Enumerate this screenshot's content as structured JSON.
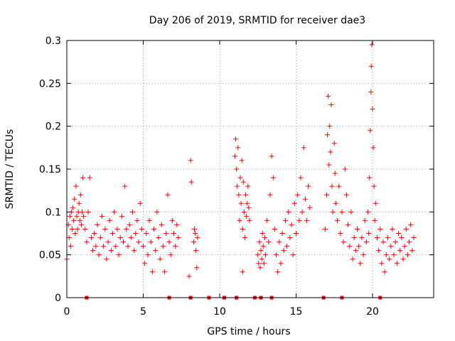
{
  "chart_data": {
    "type": "scatter",
    "title": "Day 206 of 2019, SRMTID for receiver dae3",
    "xlabel": "GPS time / hours",
    "ylabel": "SRMTID / TECUs",
    "xlim": [
      0,
      24
    ],
    "ylim": [
      0,
      0.3
    ],
    "xticks": [
      0,
      5,
      10,
      15,
      20
    ],
    "yticks": [
      0,
      0.05,
      0.1,
      0.15,
      0.2,
      0.25,
      0.3
    ],
    "grid": true,
    "marker": "+",
    "color": "#ff0000",
    "series": [
      {
        "name": "SRMTID",
        "points": [
          [
            0.0,
            0.045
          ],
          [
            0.1,
            0.085
          ],
          [
            0.15,
            0.07
          ],
          [
            0.2,
            0.095
          ],
          [
            0.25,
            0.06
          ],
          [
            0.3,
            0.1
          ],
          [
            0.35,
            0.08
          ],
          [
            0.4,
            0.105
          ],
          [
            0.45,
            0.09
          ],
          [
            0.5,
            0.115
          ],
          [
            0.55,
            0.075
          ],
          [
            0.6,
            0.13
          ],
          [
            0.65,
            0.095
          ],
          [
            0.7,
            0.08
          ],
          [
            0.75,
            0.1
          ],
          [
            0.8,
            0.11
          ],
          [
            0.85,
            0.09
          ],
          [
            0.9,
            0.12
          ],
          [
            0.95,
            0.085
          ],
          [
            1.0,
            0.1
          ],
          [
            1.05,
            0.14
          ],
          [
            1.1,
            0.095
          ],
          [
            1.2,
            0.08
          ],
          [
            1.3,
            0.065
          ],
          [
            1.4,
            0.1
          ],
          [
            1.5,
            0.14
          ],
          [
            1.6,
            0.07
          ],
          [
            1.7,
            0.055
          ],
          [
            1.8,
            0.075
          ],
          [
            1.9,
            0.06
          ],
          [
            2.0,
            0.085
          ],
          [
            2.1,
            0.05
          ],
          [
            2.2,
            0.07
          ],
          [
            2.3,
            0.095
          ],
          [
            2.4,
            0.06
          ],
          [
            2.5,
            0.08
          ],
          [
            2.6,
            0.045
          ],
          [
            2.7,
            0.065
          ],
          [
            2.8,
            0.09
          ],
          [
            2.9,
            0.055
          ],
          [
            3.0,
            0.075
          ],
          [
            3.1,
            0.1
          ],
          [
            3.2,
            0.06
          ],
          [
            3.3,
            0.08
          ],
          [
            3.4,
            0.05
          ],
          [
            3.5,
            0.07
          ],
          [
            3.6,
            0.095
          ],
          [
            3.7,
            0.065
          ],
          [
            3.8,
            0.13
          ],
          [
            3.9,
            0.08
          ],
          [
            4.0,
            0.06
          ],
          [
            4.1,
            0.085
          ],
          [
            4.2,
            0.07
          ],
          [
            4.3,
            0.1
          ],
          [
            4.4,
            0.055
          ],
          [
            4.5,
            0.075
          ],
          [
            4.6,
            0.09
          ],
          [
            4.7,
            0.065
          ],
          [
            4.8,
            0.11
          ],
          [
            4.9,
            0.08
          ],
          [
            5.0,
            0.06
          ],
          [
            5.1,
            0.04
          ],
          [
            5.2,
            0.075
          ],
          [
            5.3,
            0.05
          ],
          [
            5.4,
            0.09
          ],
          [
            5.5,
            0.065
          ],
          [
            5.6,
            0.03
          ],
          [
            5.7,
            0.08
          ],
          [
            5.8,
            0.055
          ],
          [
            5.9,
            0.1
          ],
          [
            6.0,
            0.07
          ],
          [
            6.1,
            0.045
          ],
          [
            6.2,
            0.085
          ],
          [
            6.3,
            0.06
          ],
          [
            6.4,
            0.03
          ],
          [
            6.5,
            0.075
          ],
          [
            6.6,
            0.12
          ],
          [
            6.7,
            0.065
          ],
          [
            6.8,
            0.05
          ],
          [
            6.9,
            0.09
          ],
          [
            7.0,
            0.075
          ],
          [
            7.1,
            0.06
          ],
          [
            7.2,
            0.085
          ],
          [
            7.3,
            0.07
          ],
          [
            8.0,
            0.025
          ],
          [
            8.1,
            0.16
          ],
          [
            8.15,
            0.135
          ],
          [
            8.3,
            0.065
          ],
          [
            8.35,
            0.08
          ],
          [
            8.4,
            0.075
          ],
          [
            8.45,
            0.055
          ],
          [
            8.5,
            0.035
          ],
          [
            8.55,
            0.07
          ],
          [
            11.0,
            0.165
          ],
          [
            11.05,
            0.185
          ],
          [
            11.1,
            0.15
          ],
          [
            11.15,
            0.13
          ],
          [
            11.2,
            0.175
          ],
          [
            11.25,
            0.12
          ],
          [
            11.3,
            0.09
          ],
          [
            11.35,
            0.14
          ],
          [
            11.4,
            0.11
          ],
          [
            11.45,
            0.16
          ],
          [
            11.5,
            0.08
          ],
          [
            11.55,
            0.135
          ],
          [
            11.6,
            0.1
          ],
          [
            11.65,
            0.07
          ],
          [
            11.7,
            0.12
          ],
          [
            11.75,
            0.095
          ],
          [
            11.8,
            0.11
          ],
          [
            11.85,
            0.13
          ],
          [
            11.9,
            0.105
          ],
          [
            11.95,
            0.09
          ],
          [
            11.5,
            0.03
          ],
          [
            12.5,
            0.05
          ],
          [
            12.55,
            0.04
          ],
          [
            12.6,
            0.065
          ],
          [
            12.65,
            0.035
          ],
          [
            12.7,
            0.055
          ],
          [
            12.75,
            0.045
          ],
          [
            12.8,
            0.075
          ],
          [
            12.85,
            0.06
          ],
          [
            12.9,
            0.04
          ],
          [
            12.95,
            0.07
          ],
          [
            13.0,
            0.05
          ],
          [
            13.1,
            0.09
          ],
          [
            13.2,
            0.065
          ],
          [
            13.3,
            0.12
          ],
          [
            13.4,
            0.165
          ],
          [
            13.5,
            0.14
          ],
          [
            13.6,
            0.08
          ],
          [
            13.7,
            0.05
          ],
          [
            13.8,
            0.03
          ],
          [
            13.9,
            0.065
          ],
          [
            14.0,
            0.04
          ],
          [
            14.1,
            0.075
          ],
          [
            14.2,
            0.055
          ],
          [
            14.3,
            0.09
          ],
          [
            14.4,
            0.06
          ],
          [
            14.5,
            0.1
          ],
          [
            14.6,
            0.07
          ],
          [
            14.7,
            0.085
          ],
          [
            14.8,
            0.05
          ],
          [
            14.9,
            0.11
          ],
          [
            15.0,
            0.075
          ],
          [
            15.1,
            0.12
          ],
          [
            15.2,
            0.09
          ],
          [
            15.3,
            0.14
          ],
          [
            15.4,
            0.1
          ],
          [
            15.5,
            0.175
          ],
          [
            15.6,
            0.115
          ],
          [
            15.7,
            0.09
          ],
          [
            15.8,
            0.13
          ],
          [
            15.9,
            0.105
          ],
          [
            16.9,
            0.08
          ],
          [
            17.0,
            0.12
          ],
          [
            17.05,
            0.19
          ],
          [
            17.1,
            0.235
          ],
          [
            17.15,
            0.155
          ],
          [
            17.2,
            0.2
          ],
          [
            17.25,
            0.17
          ],
          [
            17.3,
            0.225
          ],
          [
            17.35,
            0.13
          ],
          [
            17.4,
            0.1
          ],
          [
            17.5,
            0.18
          ],
          [
            17.55,
            0.145
          ],
          [
            17.6,
            0.11
          ],
          [
            17.7,
            0.09
          ],
          [
            17.8,
            0.13
          ],
          [
            17.9,
            0.075
          ],
          [
            18.0,
            0.1
          ],
          [
            18.1,
            0.065
          ],
          [
            18.2,
            0.15
          ],
          [
            18.3,
            0.12
          ],
          [
            18.4,
            0.085
          ],
          [
            18.5,
            0.06
          ],
          [
            18.6,
            0.1
          ],
          [
            18.7,
            0.045
          ],
          [
            18.8,
            0.07
          ],
          [
            18.9,
            0.055
          ],
          [
            19.0,
            0.08
          ],
          [
            19.1,
            0.06
          ],
          [
            19.2,
            0.04
          ],
          [
            19.3,
            0.07
          ],
          [
            19.4,
            0.05
          ],
          [
            19.5,
            0.09
          ],
          [
            19.6,
            0.065
          ],
          [
            19.7,
            0.1
          ],
          [
            19.75,
            0.075
          ],
          [
            19.8,
            0.14
          ],
          [
            19.85,
            0.195
          ],
          [
            19.9,
            0.24
          ],
          [
            19.92,
            0.27
          ],
          [
            19.95,
            0.295
          ],
          [
            20.0,
            0.22
          ],
          [
            20.05,
            0.175
          ],
          [
            20.1,
            0.13
          ],
          [
            20.15,
            0.09
          ],
          [
            20.2,
            0.11
          ],
          [
            20.3,
            0.07
          ],
          [
            20.4,
            0.055
          ],
          [
            20.5,
            0.08
          ],
          [
            20.6,
            0.04
          ],
          [
            20.7,
            0.065
          ],
          [
            20.8,
            0.03
          ],
          [
            20.9,
            0.05
          ],
          [
            21.0,
            0.07
          ],
          [
            21.1,
            0.045
          ],
          [
            21.2,
            0.06
          ],
          [
            21.3,
            0.08
          ],
          [
            21.4,
            0.05
          ],
          [
            21.5,
            0.065
          ],
          [
            21.6,
            0.04
          ],
          [
            21.7,
            0.075
          ],
          [
            21.8,
            0.055
          ],
          [
            21.9,
            0.07
          ],
          [
            22.0,
            0.045
          ],
          [
            22.1,
            0.06
          ],
          [
            22.2,
            0.08
          ],
          [
            22.3,
            0.05
          ],
          [
            22.4,
            0.065
          ],
          [
            22.5,
            0.085
          ],
          [
            22.6,
            0.055
          ],
          [
            22.7,
            0.07
          ]
        ]
      }
    ],
    "baseline_markers": [
      1.3,
      6.7,
      8.1,
      9.3,
      10.3,
      11.1,
      12.3,
      12.7,
      13.4,
      16.8,
      18.0,
      20.5
    ]
  }
}
